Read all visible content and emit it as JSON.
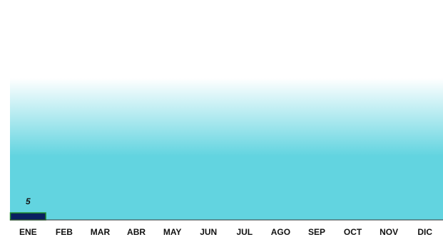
{
  "chart_data": {
    "type": "bar",
    "categories": [
      "ENE",
      "FEB",
      "MAR",
      "ABR",
      "MAY",
      "JUN",
      "JUL",
      "AGO",
      "SEP",
      "OCT",
      "NOV",
      "DIC"
    ],
    "values": [
      5,
      null,
      null,
      null,
      null,
      null,
      null,
      null,
      null,
      null,
      null,
      null
    ],
    "data_labels": [
      "5",
      "",
      "",
      "",
      "",
      "",
      "",
      "",
      "",
      "",
      "",
      ""
    ],
    "title": "",
    "xlabel": "",
    "ylabel": "",
    "ylim": [
      0,
      100
    ],
    "grid": false,
    "legend": "none",
    "colors": {
      "bar_fill": "#0a2060",
      "bar_stroke": "#1f8a2a",
      "plot_gradient_top": "#ffffff",
      "plot_gradient_bottom": "#62d4e0",
      "baseline": "#333333"
    }
  }
}
